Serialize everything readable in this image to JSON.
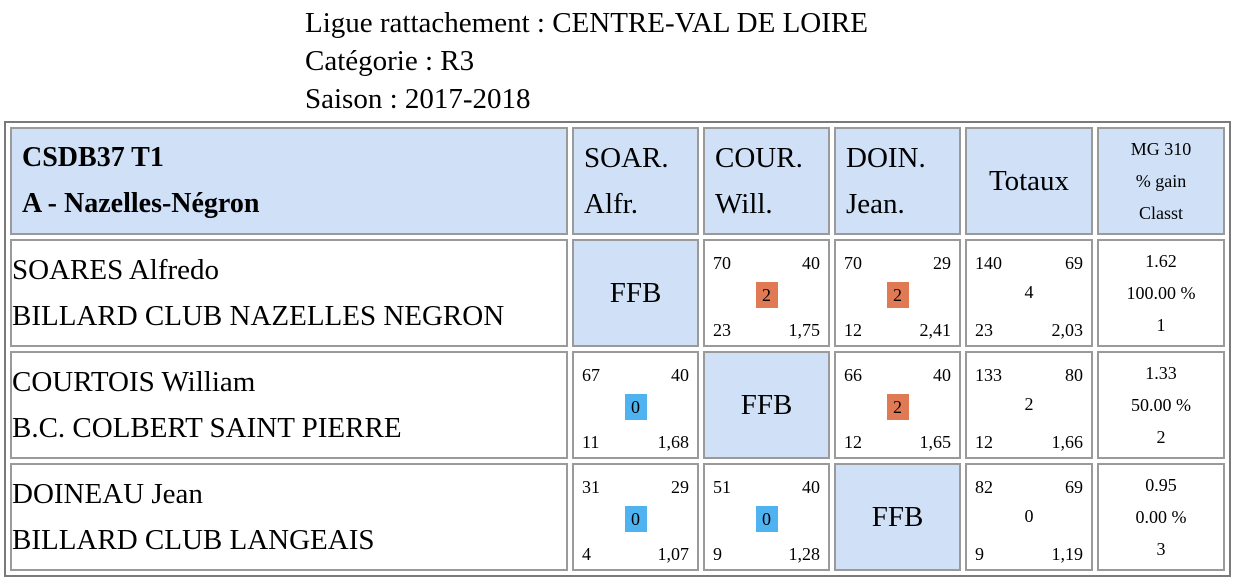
{
  "header": {
    "ligue": "Ligue rattachement : CENTRE-VAL DE LOIRE",
    "categorie": "Catégorie : R3",
    "saison": "Saison : 2017-2018"
  },
  "table": {
    "team_code": "CSDB37 T1",
    "team_name": "A - Nazelles-Négron",
    "col_heads": [
      {
        "l1": "SOAR.",
        "l2": "Alfr."
      },
      {
        "l1": "COUR.",
        "l2": "Will."
      },
      {
        "l1": "DOIN.",
        "l2": "Jean."
      }
    ],
    "totals_head": "Totaux",
    "stats_head": {
      "l1": "MG 310",
      "l2": "% gain",
      "l3": "Classt"
    },
    "ffb": "FFB",
    "players": [
      {
        "name": "SOARES Alfredo",
        "club": "BILLARD CLUB NAZELLES NEGRON",
        "matches": [
          null,
          {
            "tl": "70",
            "tr": "40",
            "pts": "2",
            "bl": "23",
            "br": "1,75"
          },
          {
            "tl": "70",
            "tr": "29",
            "pts": "2",
            "bl": "12",
            "br": "2,41"
          }
        ],
        "totals": {
          "tl": "140",
          "tr": "69",
          "pts": "4",
          "bl": "23",
          "br": "2,03"
        },
        "stats": {
          "mg": "1.62",
          "pct": "100.00 %",
          "rank": "1"
        }
      },
      {
        "name": "COURTOIS William",
        "club": "B.C. COLBERT SAINT PIERRE",
        "matches": [
          {
            "tl": "67",
            "tr": "40",
            "pts": "0",
            "bl": "11",
            "br": "1,68"
          },
          null,
          {
            "tl": "66",
            "tr": "40",
            "pts": "2",
            "bl": "12",
            "br": "1,65"
          }
        ],
        "totals": {
          "tl": "133",
          "tr": "80",
          "pts": "2",
          "bl": "12",
          "br": "1,66"
        },
        "stats": {
          "mg": "1.33",
          "pct": "50.00 %",
          "rank": "2"
        }
      },
      {
        "name": "DOINEAU Jean",
        "club": "BILLARD CLUB LANGEAIS",
        "matches": [
          {
            "tl": "31",
            "tr": "29",
            "pts": "0",
            "bl": "4",
            "br": "1,07"
          },
          {
            "tl": "51",
            "tr": "40",
            "pts": "0",
            "bl": "9",
            "br": "1,28"
          },
          null
        ],
        "totals": {
          "tl": "82",
          "tr": "69",
          "pts": "0",
          "bl": "9",
          "br": "1,19"
        },
        "stats": {
          "mg": "0.95",
          "pct": "0.00 %",
          "rank": "3"
        }
      }
    ]
  }
}
